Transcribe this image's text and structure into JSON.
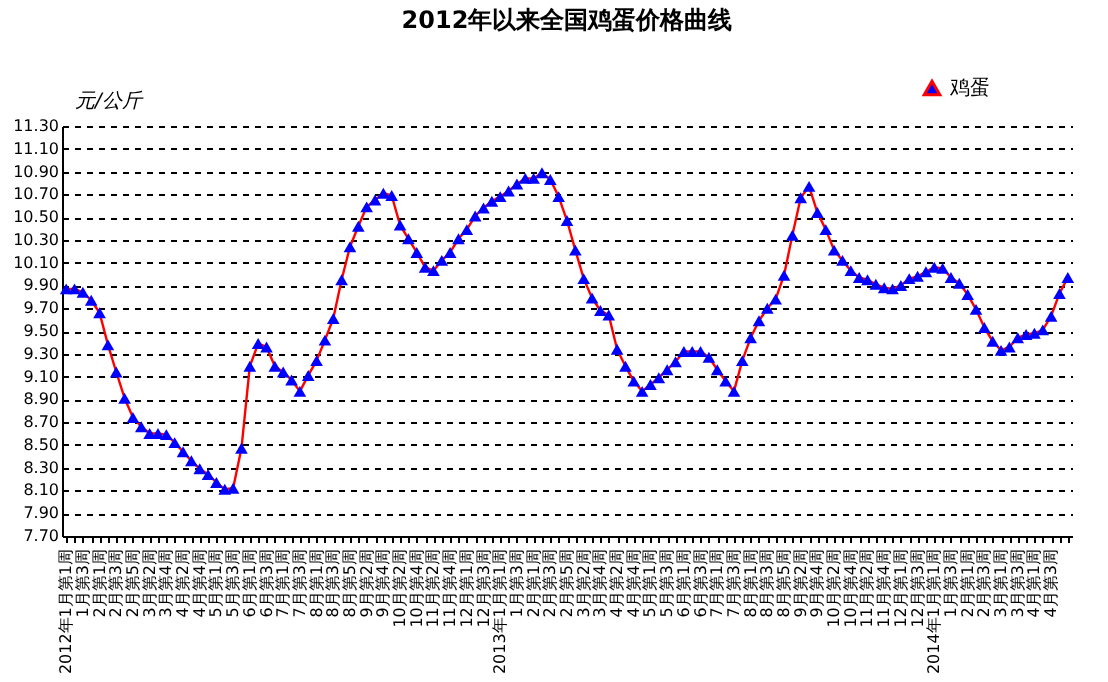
{
  "chart_data": {
    "type": "line",
    "title": "2012年以来全国鸡蛋价格曲线",
    "ylabel": "元/公斤",
    "categories": [
      "2012年1月第1周",
      null,
      "1月第3周",
      null,
      "2月第1周",
      null,
      "2月第3周",
      null,
      "2月第5周",
      null,
      "3月第2周",
      null,
      "3月第4周",
      null,
      "4月第2周",
      null,
      "4月第4周",
      null,
      "5月第1周",
      null,
      "5月第3周",
      null,
      "6月第1周",
      null,
      "6月第3周",
      null,
      "7月第1周",
      null,
      "7月第3周",
      null,
      "8月第1周",
      null,
      "8月第3周",
      null,
      "8月第5周",
      null,
      "9月第2周",
      null,
      "9月第4周",
      null,
      "10月第2周",
      null,
      "10月第4周",
      null,
      "11月第2周",
      null,
      "11月第4周",
      null,
      "12月第1周",
      null,
      "12月第3周",
      null,
      "2013年1月第1周",
      null,
      "1月第3周",
      null,
      "2月第1周",
      null,
      "2月第3周",
      null,
      "2月第5周",
      null,
      "3月第2周",
      null,
      "3月第4周",
      null,
      "4月第2周",
      null,
      "4月第4周",
      null,
      "5月第1周",
      null,
      "5月第3周",
      null,
      "6月第1周",
      null,
      "6月第3周",
      null,
      "7月第1周",
      null,
      "7月第3周",
      null,
      "8月第1周",
      null,
      "8月第3周",
      null,
      "8月第5周",
      null,
      "9月第2周",
      null,
      "9月第4周",
      null,
      "10月第2周",
      null,
      "10月第4周",
      null,
      "11月第2周",
      null,
      "11月第4周",
      null,
      "12月第1周",
      null,
      "12月第3周",
      null,
      "2014年1月第1周",
      null,
      "1月第3周",
      null,
      "2月第1周",
      null,
      "2月第3周",
      null,
      "3月第1周",
      null,
      "3月第3周",
      null,
      "4月第1周",
      null,
      "4月第3周",
      null,
      null
    ],
    "series": [
      {
        "name": "鸡蛋",
        "color": "#0000ff",
        "values": [
          9.87,
          9.87,
          9.84,
          9.77,
          9.66,
          9.38,
          9.14,
          8.91,
          8.74,
          8.66,
          8.6,
          8.6,
          8.59,
          8.52,
          8.44,
          8.36,
          8.29,
          8.24,
          8.17,
          8.11,
          8.12,
          8.47,
          9.19,
          9.39,
          9.36,
          9.19,
          9.14,
          9.07,
          8.97,
          9.11,
          9.24,
          9.42,
          9.61,
          9.95,
          10.24,
          10.42,
          10.59,
          10.65,
          10.71,
          10.69,
          10.43,
          10.31,
          10.19,
          10.06,
          10.03,
          10.12,
          10.19,
          10.31,
          10.39,
          10.51,
          10.58,
          10.64,
          10.68,
          10.73,
          10.79,
          10.84,
          10.84,
          10.89,
          10.83,
          10.68,
          10.47,
          10.21,
          9.96,
          9.79,
          9.68,
          9.64,
          9.34,
          9.19,
          9.06,
          8.97,
          9.03,
          9.09,
          9.16,
          9.23,
          9.32,
          9.32,
          9.32,
          9.27,
          9.16,
          9.06,
          8.97,
          9.24,
          9.44,
          9.59,
          9.7,
          9.78,
          9.99,
          10.34,
          10.67,
          10.77,
          10.54,
          10.39,
          10.21,
          10.12,
          10.03,
          9.97,
          9.95,
          9.91,
          9.88,
          9.87,
          9.9,
          9.96,
          9.98,
          10.02,
          10.06,
          10.05,
          9.97,
          9.92,
          9.82,
          9.69,
          9.53,
          9.41,
          9.33,
          9.36,
          9.44,
          9.47,
          9.48,
          9.51,
          9.63,
          9.83,
          9.97
        ]
      }
    ],
    "ylim": [
      7.7,
      11.3
    ],
    "yticks": [
      {
        "value": 7.7,
        "label": "7.70"
      },
      {
        "value": 7.9,
        "label": "7.90"
      },
      {
        "value": 8.1,
        "label": "8.10"
      },
      {
        "value": 8.3,
        "label": "8.30"
      },
      {
        "value": 8.5,
        "label": "8.50"
      },
      {
        "value": 8.7,
        "label": "8.70"
      },
      {
        "value": 8.9,
        "label": "8.90"
      },
      {
        "value": 9.1,
        "label": "9.10"
      },
      {
        "value": 9.3,
        "label": "9.30"
      },
      {
        "value": 9.5,
        "label": "9.50"
      },
      {
        "value": 9.7,
        "label": "9.70"
      },
      {
        "value": 9.9,
        "label": "9.90"
      },
      {
        "value": 10.1,
        "label": "10.10"
      },
      {
        "value": 10.3,
        "label": "10.30"
      },
      {
        "value": 10.5,
        "label": "10.50"
      },
      {
        "value": 10.7,
        "label": "10.70"
      },
      {
        "value": 10.9,
        "label": "10.90"
      },
      {
        "value": 11.1,
        "label": "11.10"
      },
      {
        "value": 11.3,
        "label": "11.30"
      }
    ],
    "grid": "y",
    "legend": "top right",
    "marker": "triangle",
    "line_style": "solid"
  }
}
